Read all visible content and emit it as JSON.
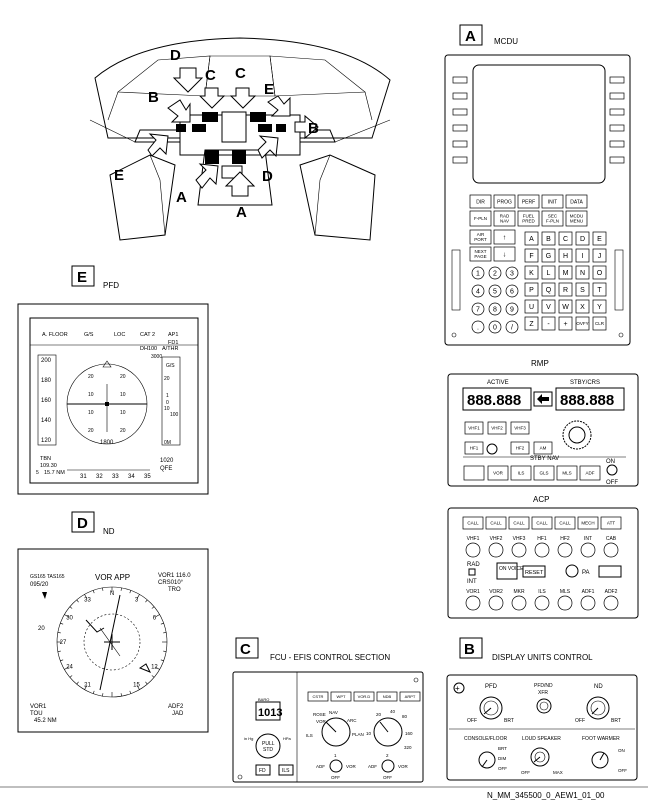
{
  "cockpit": {
    "callouts": [
      "D",
      "C",
      "C",
      "B",
      "E",
      "B",
      "E",
      "A",
      "D",
      "A"
    ]
  },
  "mcdu": {
    "letter": "A",
    "title": "MCDU",
    "mode_keys": [
      "DIR",
      "PROG",
      "PERF",
      "INIT",
      "DATA",
      "F-PLN",
      "RAD NAV",
      "FUEL PRED",
      "SEC F-PLN",
      "MCDU MENU",
      "AIR PORT",
      "NEXT PAGE"
    ],
    "alpha_keys": [
      "A",
      "B",
      "C",
      "D",
      "E",
      "F",
      "G",
      "H",
      "I",
      "J",
      "K",
      "L",
      "M",
      "N",
      "O",
      "P",
      "Q",
      "R",
      "S",
      "T",
      "U",
      "V",
      "W",
      "X",
      "Y",
      "Z",
      "-",
      "+",
      "OVFY",
      "CLR"
    ],
    "num_keys": [
      "1",
      "2",
      "3",
      "4",
      "5",
      "6",
      "7",
      "8",
      "9",
      ".",
      "0",
      "/"
    ]
  },
  "rmp": {
    "title": "RMP",
    "active_label": "ACTIVE",
    "stby_label": "STBY/CRS",
    "active_display": "888.888",
    "stby_display": "888.888",
    "keys_row1": [
      "VHF1",
      "VHF2",
      "VHF3"
    ],
    "keys_row2": [
      "HF1",
      "HF2",
      "AM"
    ],
    "nav_label": "STBY NAV",
    "nav_keys": [
      "VOR",
      "ILS",
      "GLS",
      "MLS",
      "ADF"
    ],
    "on_label": "ON",
    "off_label": "OFF"
  },
  "acp": {
    "title": "ACP",
    "call_keys": [
      "CALL",
      "CALL",
      "CALL",
      "CALL",
      "CALL",
      "MECH",
      "ATT"
    ],
    "row1_labels": [
      "VHF1",
      "VHF2",
      "VHF3",
      "HF1",
      "HF2",
      "INT",
      "CAB"
    ],
    "rad_label": "RAD",
    "int_label": "INT",
    "on_voice": "ON VOICE",
    "reset": "RESET",
    "pa_label": "PA",
    "row2_labels": [
      "VOR1",
      "VOR2",
      "MKR",
      "ILS",
      "MLS",
      "ADF1",
      "ADF2"
    ]
  },
  "pfd": {
    "letter": "E",
    "title": "PFD",
    "fma": [
      "A. FLOOR",
      "G/S",
      "LOC",
      "CAT 2",
      "AP1",
      "FD1",
      "DH100",
      "A/THR"
    ],
    "speeds": [
      "200",
      "180",
      "160",
      "140",
      "120"
    ],
    "alt": [
      "3000",
      "G/S",
      "20",
      "1",
      "0",
      "10",
      "100",
      "0M"
    ],
    "pitch": [
      "20",
      "20",
      "10",
      "10",
      "10",
      "10",
      "20",
      "20"
    ],
    "radio_alt": "1800",
    "baro": [
      "1020",
      "QFE"
    ],
    "heading": [
      "31",
      "32",
      "33",
      "34",
      "35"
    ],
    "ils": [
      "TBN",
      "109.30",
      "15.7 NM"
    ],
    "speed_marks": [
      "5"
    ]
  },
  "nd": {
    "letter": "D",
    "title": "ND",
    "mode": "VOR APP",
    "gs_tas": "GS165 TAS165",
    "wind": "095/20",
    "vor": [
      "VOR1 116.0",
      "CRS010°",
      "TRO"
    ],
    "compass": [
      "30",
      "33",
      "N",
      "3",
      "6",
      "12",
      "15",
      "21",
      "24",
      "27"
    ],
    "range": "20",
    "vor1": [
      "VOR1",
      "TOU",
      "45.2 NM"
    ],
    "adf": [
      "ADF2",
      "JAD"
    ]
  },
  "fcu": {
    "letter": "C",
    "title": "FCU - EFIS CONTROL SECTION",
    "baro_display": "1013",
    "baro_label": "BARO",
    "inhg": "in Hg",
    "hpa": "HPa",
    "pull_std": [
      "PULL",
      "STD"
    ],
    "fd": "FD",
    "ils": "ILS",
    "option_keys": [
      "CSTR",
      "WPT",
      "VOR.D",
      "NDB",
      "ARPT"
    ],
    "modes": [
      "ROSE",
      "VOR",
      "NAV",
      "ARC",
      "ILS",
      "PLAN"
    ],
    "ranges": [
      "20",
      "40",
      "80",
      "10",
      "160",
      "320"
    ],
    "adf": "ADF",
    "vor": "VOR",
    "off": "OFF",
    "sel": [
      "1",
      "2"
    ]
  },
  "duc": {
    "letter": "B",
    "title": "DISPLAY UNITS CONTROL",
    "pfd": "PFD",
    "pfd_nd_xfr": [
      "PFD/ND",
      "XFR"
    ],
    "nd": "ND",
    "off": "OFF",
    "brt": "BRT",
    "console": "CONSOLE/FLOOR",
    "dim": "DIM",
    "loud": "LOUD SPEAKER",
    "max": "MAX",
    "foot": "FOOT WARMER",
    "on": "ON"
  },
  "ref": "N_MM_345500_0_AEW1_01_00"
}
